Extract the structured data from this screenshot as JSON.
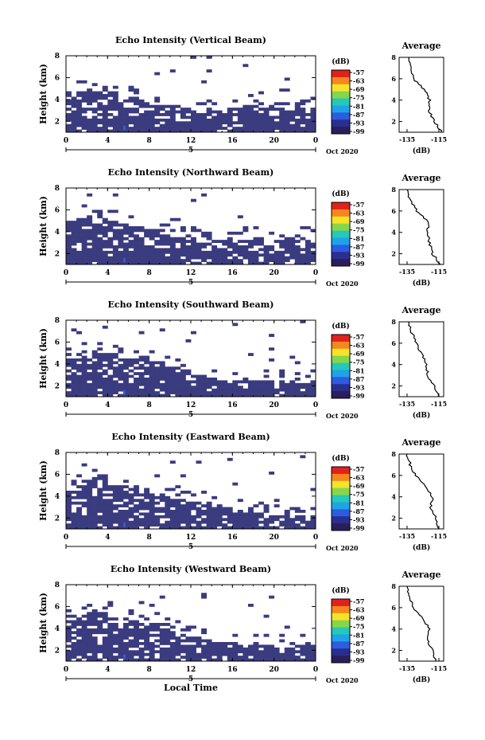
{
  "chart_data": [
    {
      "type": "heatmap",
      "title": "Echo Intensity (Vertical Beam)",
      "ylabel": "Height (km)",
      "x_ticks": [
        "0",
        "4",
        "8",
        "12",
        "16",
        "20",
        "0"
      ],
      "y_ticks": [
        "2",
        "4",
        "6",
        "8"
      ],
      "xlim": [
        0,
        24
      ],
      "ylim": [
        1,
        8
      ],
      "day_marker": "5",
      "date_label": "Oct 2020",
      "colorbar": {
        "unit": "(dB)",
        "ticks": [
          "-57",
          "-63",
          "-69",
          "-75",
          "-81",
          "-87",
          "-93",
          "-99"
        ]
      },
      "cloud_top_km": [
        4.6,
        5.0,
        4.8,
        4.9,
        4.7,
        4.4,
        4.2,
        3.9,
        3.7,
        3.5,
        3.3,
        3.2,
        3.0,
        2.9,
        3.0,
        3.1,
        3.2,
        3.3,
        3.3,
        3.2,
        3.1,
        3.0,
        3.2,
        3.1
      ],
      "average_profile": {
        "title": "Average",
        "xlabel": "(dB)",
        "x_ticks": [
          "-135",
          "-115"
        ],
        "y_ticks": [
          "2",
          "4",
          "6",
          "8"
        ],
        "height_km": [
          1,
          2,
          3,
          4,
          5,
          6,
          7,
          8
        ],
        "value_db": [
          -113,
          -118,
          -121,
          -121,
          -124,
          -131,
          -133,
          -134
        ]
      }
    },
    {
      "type": "heatmap",
      "title": "Echo Intensity (Northward Beam)",
      "ylabel": "Height (km)",
      "x_ticks": [
        "0",
        "4",
        "8",
        "12",
        "16",
        "20",
        "0"
      ],
      "y_ticks": [
        "2",
        "4",
        "6",
        "8"
      ],
      "xlim": [
        0,
        24
      ],
      "ylim": [
        1,
        8
      ],
      "day_marker": "5",
      "date_label": "Oct 2020",
      "colorbar": {
        "unit": "(dB)",
        "ticks": [
          "-57",
          "-63",
          "-69",
          "-75",
          "-81",
          "-87",
          "-93",
          "-99"
        ]
      },
      "cloud_top_km": [
        4.8,
        5.2,
        5.0,
        4.9,
        4.8,
        4.7,
        4.5,
        4.3,
        4.1,
        3.6,
        3.4,
        3.3,
        3.3,
        3.3,
        3.2,
        3.1,
        3.2,
        3.3,
        3.3,
        3.2,
        3.2,
        3.3,
        3.4,
        3.3
      ],
      "average_profile": {
        "title": "Average",
        "xlabel": "(dB)",
        "x_ticks": [
          "-135",
          "-115"
        ],
        "y_ticks": [
          "2",
          "4",
          "6",
          "8"
        ],
        "height_km": [
          1,
          2,
          3,
          4,
          5,
          6,
          7,
          8
        ],
        "value_db": [
          -114,
          -119,
          -121,
          -122,
          -122,
          -129,
          -133,
          -135
        ]
      }
    },
    {
      "type": "heatmap",
      "title": "Echo Intensity (Southward Beam)",
      "ylabel": "Height (km)",
      "x_ticks": [
        "0",
        "4",
        "8",
        "12",
        "16",
        "20",
        "0"
      ],
      "y_ticks": [
        "2",
        "4",
        "6",
        "8"
      ],
      "xlim": [
        0,
        24
      ],
      "ylim": [
        1,
        8
      ],
      "day_marker": "5",
      "date_label": "Oct 2020",
      "colorbar": {
        "unit": "(dB)",
        "ticks": [
          "-57",
          "-63",
          "-69",
          "-75",
          "-81",
          "-87",
          "-93",
          "-99"
        ]
      },
      "cloud_top_km": [
        4.5,
        5.0,
        4.9,
        4.8,
        4.8,
        4.6,
        4.5,
        4.4,
        4.2,
        4.0,
        3.7,
        3.3,
        3.0,
        2.8,
        2.6,
        2.4,
        2.4,
        2.5,
        2.4,
        2.3,
        2.3,
        2.3,
        2.2,
        2.3
      ],
      "average_profile": {
        "title": "Average",
        "xlabel": "(dB)",
        "x_ticks": [
          "-135",
          "-115"
        ],
        "y_ticks": [
          "2",
          "4",
          "6",
          "8"
        ],
        "height_km": [
          1,
          2,
          3,
          4,
          5,
          6,
          7,
          8
        ],
        "value_db": [
          -115,
          -118,
          -122,
          -123,
          -126,
          -129,
          -132,
          -134
        ]
      }
    },
    {
      "type": "heatmap",
      "title": "Echo Intensity (Eastward Beam)",
      "ylabel": "Height (km)",
      "x_ticks": [
        "0",
        "4",
        "8",
        "12",
        "16",
        "20",
        "0"
      ],
      "y_ticks": [
        "2",
        "4",
        "6",
        "8"
      ],
      "xlim": [
        0,
        24
      ],
      "ylim": [
        1,
        8
      ],
      "day_marker": "5",
      "date_label": "Oct 2020",
      "colorbar": {
        "unit": "(dB)",
        "ticks": [
          "-57",
          "-63",
          "-69",
          "-75",
          "-81",
          "-87",
          "-93",
          "-99"
        ]
      },
      "cloud_top_km": [
        4.6,
        5.0,
        5.3,
        5.1,
        5.0,
        4.8,
        4.6,
        4.4,
        4.2,
        4.0,
        3.8,
        3.6,
        3.4,
        3.3,
        3.2,
        2.9,
        2.6,
        2.4,
        2.3,
        2.2,
        2.1,
        2.0,
        2.1,
        2.2
      ],
      "average_profile": {
        "title": "Average",
        "xlabel": "(dB)",
        "x_ticks": [
          "-135",
          "-115"
        ],
        "y_ticks": [
          "2",
          "4",
          "6",
          "8"
        ],
        "height_km": [
          1,
          2,
          3,
          4,
          5,
          6,
          7,
          8
        ],
        "value_db": [
          -115,
          -117,
          -120,
          -119,
          -123,
          -130,
          -133,
          -135
        ]
      }
    },
    {
      "type": "heatmap",
      "title": "Echo Intensity (Westward Beam)",
      "ylabel": "Height (km)",
      "xlabel": "Local Time",
      "x_ticks": [
        "0",
        "4",
        "8",
        "12",
        "16",
        "20",
        "0"
      ],
      "y_ticks": [
        "2",
        "4",
        "6",
        "8"
      ],
      "xlim": [
        0,
        24
      ],
      "ylim": [
        1,
        8
      ],
      "day_marker": "5",
      "date_label": "Oct 2020",
      "colorbar": {
        "unit": "(dB)",
        "ticks": [
          "-57",
          "-63",
          "-69",
          "-75",
          "-81",
          "-87",
          "-93",
          "-99"
        ]
      },
      "cloud_top_km": [
        4.7,
        5.2,
        5.4,
        5.3,
        5.1,
        4.9,
        4.7,
        4.5,
        4.3,
        4.0,
        3.7,
        3.4,
        3.1,
        2.9,
        2.8,
        2.6,
        2.5,
        2.4,
        2.3,
        2.3,
        2.2,
        2.2,
        2.3,
        2.3
      ],
      "average_profile": {
        "title": "Average",
        "xlabel": "(dB)",
        "x_ticks": [
          "-135",
          "-115"
        ],
        "y_ticks": [
          "2",
          "4",
          "6",
          "8"
        ],
        "height_km": [
          1,
          2,
          3,
          4,
          5,
          6,
          7,
          8
        ],
        "value_db": [
          -117,
          -119,
          -122,
          -121,
          -125,
          -131,
          -134,
          -135
        ]
      }
    }
  ],
  "colors": {
    "echo_fill": "#3b3b7f",
    "echo_core": "#3a58d4",
    "colorbar": [
      "#e0211c",
      "#f5871e",
      "#f7e22a",
      "#86d64c",
      "#26c8b8",
      "#1fa3e8",
      "#2d5ce0",
      "#2a2f8f",
      "#2a1e5c"
    ]
  }
}
